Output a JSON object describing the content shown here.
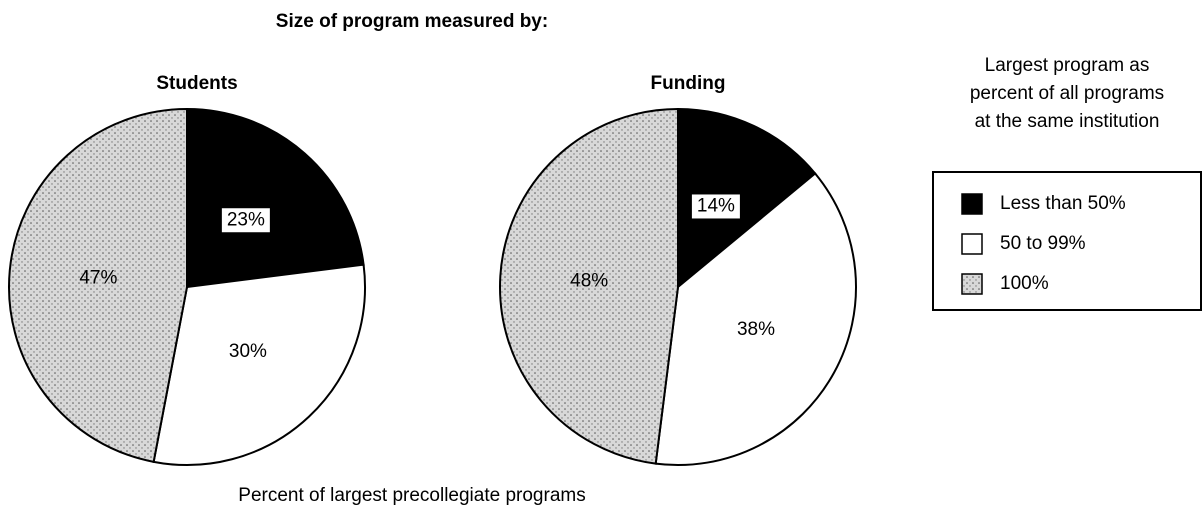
{
  "title": "Size of program measured by:",
  "caption": "Percent of largest precollegiate programs",
  "legend_title": [
    "Largest program as",
    "percent of all programs",
    "at the same institution"
  ],
  "chart_data": [
    {
      "type": "pie",
      "title": "Students",
      "categories": [
        "Less than 50%",
        "50 to 99%",
        "100%"
      ],
      "values": [
        23,
        30,
        47
      ],
      "value_labels": [
        "23%",
        "30%",
        "47%"
      ],
      "colors": [
        "#000000",
        "#ffffff",
        "#d8d8d8"
      ]
    },
    {
      "type": "pie",
      "title": "Funding",
      "categories": [
        "Less than 50%",
        "50 to 99%",
        "100%"
      ],
      "values": [
        14,
        38,
        48
      ],
      "value_labels": [
        "14%",
        "38%",
        "48%"
      ],
      "colors": [
        "#000000",
        "#ffffff",
        "#d8d8d8"
      ]
    }
  ]
}
